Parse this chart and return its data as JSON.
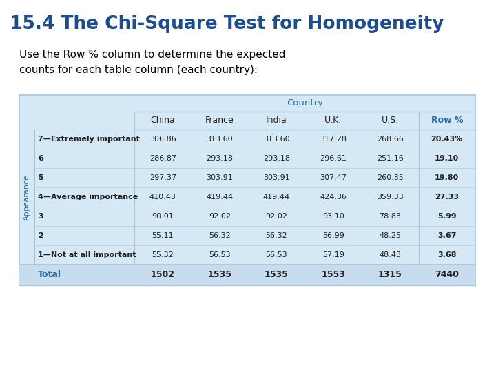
{
  "title": "15.4 The Chi-Square Test for Homogeneity",
  "subtitle": "Use the Row % column to determine the expected\ncounts for each table column (each country):",
  "title_color": "#1E4D8C",
  "subtitle_color": "#000000",
  "table_bg": "#D5E8F5",
  "table_border": "#A8C4D8",
  "header_color": "#2E6DA4",
  "country_header": "Country",
  "col_headers": [
    "China",
    "France",
    "India",
    "U.K.",
    "U.S.",
    "Row %"
  ],
  "side_label": "Appearance",
  "row_labels": [
    "7—Extremely important",
    "6",
    "5",
    "4—Average importance",
    "3",
    "2",
    "1—Not at all important"
  ],
  "data_rows": [
    [
      "306.86",
      "313.60",
      "313.60",
      "317.28",
      "268.66",
      "20.43%"
    ],
    [
      "286.87",
      "293.18",
      "293.18",
      "296.61",
      "251.16",
      "19.10"
    ],
    [
      "297.37",
      "303.91",
      "303.91",
      "307.47",
      "260.35",
      "19.80"
    ],
    [
      "410.43",
      "419.44",
      "419.44",
      "424.36",
      "359.33",
      "27.33"
    ],
    [
      "90.01",
      "92.02",
      "92.02",
      "93.10",
      "78.83",
      "5.99"
    ],
    [
      "55.11",
      "56.32",
      "56.32",
      "56.99",
      "48.25",
      "3.67"
    ],
    [
      "55.32",
      "56.53",
      "56.53",
      "57.19",
      "48.43",
      "3.68"
    ]
  ],
  "total_row": [
    "1502",
    "1535",
    "1535",
    "1553",
    "1315",
    "7440"
  ],
  "total_label": "Total",
  "total_color": "#2E6DA4",
  "total_bg": "#C8DCF0"
}
